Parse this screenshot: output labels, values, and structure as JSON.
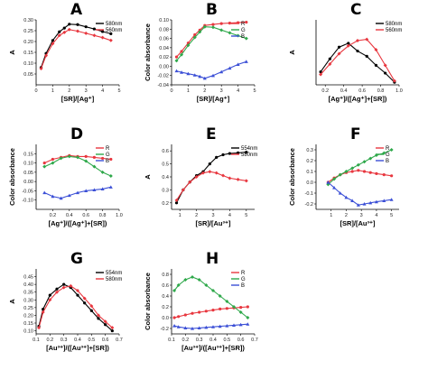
{
  "chart_data": [
    {
      "panel": "A",
      "type": "line",
      "xlabel": "[SR]/[Ag⁺]",
      "ylabel": "A",
      "xlim": [
        0,
        5
      ],
      "ylim": [
        0.0,
        0.3
      ],
      "xticks": [
        "0",
        "1",
        "2",
        "3",
        "4",
        "5"
      ],
      "yticks": [
        "0.05",
        "0.10",
        "0.15",
        "0.20",
        "0.25",
        "0.30"
      ],
      "legend": "top-right",
      "series": [
        {
          "name": "580nm",
          "color": "#000000",
          "x": [
            0.3,
            0.6,
            1.0,
            1.4,
            1.7,
            2.0,
            2.5,
            3.0,
            3.5,
            4.0,
            4.5
          ],
          "y": [
            0.08,
            0.145,
            0.205,
            0.245,
            0.262,
            0.28,
            0.278,
            0.268,
            0.258,
            0.246,
            0.236
          ]
        },
        {
          "name": "560nm",
          "color": "#e8373f",
          "x": [
            0.3,
            0.6,
            1.0,
            1.4,
            1.7,
            2.0,
            2.5,
            3.0,
            3.5,
            4.0,
            4.5
          ],
          "y": [
            0.075,
            0.135,
            0.19,
            0.228,
            0.242,
            0.255,
            0.248,
            0.238,
            0.228,
            0.218,
            0.205
          ]
        }
      ]
    },
    {
      "panel": "B",
      "type": "line",
      "xlabel": "[SR]/[Ag⁺]",
      "ylabel": "Color absorbance",
      "xlim": [
        0,
        5
      ],
      "ylim": [
        -0.04,
        0.1
      ],
      "xticks": [
        "0",
        "1",
        "2",
        "3",
        "4",
        "5"
      ],
      "yticks": [
        "-0.04",
        "-0.02",
        "0.00",
        "0.02",
        "0.04",
        "0.06",
        "0.08",
        "0.10"
      ],
      "legend": "top-right",
      "series": [
        {
          "name": "R",
          "color": "#e8373f",
          "x": [
            0.3,
            0.6,
            1.0,
            1.4,
            1.7,
            2.0,
            2.5,
            3.0,
            3.5,
            4.0,
            4.5
          ],
          "y": [
            0.02,
            0.032,
            0.05,
            0.068,
            0.078,
            0.088,
            0.09,
            0.092,
            0.093,
            0.094,
            0.095
          ]
        },
        {
          "name": "G",
          "color": "#2ea84a",
          "x": [
            0.3,
            0.6,
            1.0,
            1.4,
            1.7,
            2.0,
            2.5,
            3.0,
            3.5,
            4.0,
            4.5
          ],
          "y": [
            0.012,
            0.025,
            0.045,
            0.062,
            0.074,
            0.085,
            0.084,
            0.078,
            0.072,
            0.066,
            0.06
          ]
        },
        {
          "name": "B",
          "color": "#3b4fd6",
          "x": [
            0.3,
            0.6,
            1.0,
            1.4,
            1.7,
            2.0,
            2.5,
            3.0,
            3.5,
            4.0,
            4.5
          ],
          "y": [
            -0.01,
            -0.013,
            -0.016,
            -0.019,
            -0.022,
            -0.026,
            -0.02,
            -0.012,
            -0.004,
            0.004,
            0.01
          ]
        }
      ]
    },
    {
      "panel": "C",
      "type": "line",
      "xlabel": "[Ag⁺]/([Ag⁺]+[SR])",
      "ylabel": "A",
      "xlim": [
        0.1,
        1.0
      ],
      "ylim": [
        0.1,
        0.6
      ],
      "xticks": [
        "0.2",
        "0.4",
        "0.6",
        "0.8",
        "1.0"
      ],
      "yticks": [],
      "legend": "top-right",
      "series": [
        {
          "name": "580nm",
          "color": "#000000",
          "x": [
            0.15,
            0.25,
            0.35,
            0.45,
            0.55,
            0.65,
            0.75,
            0.85,
            0.95
          ],
          "y": [
            0.2,
            0.3,
            0.39,
            0.42,
            0.36,
            0.32,
            0.25,
            0.19,
            0.12
          ]
        },
        {
          "name": "560nm",
          "color": "#e8373f",
          "x": [
            0.15,
            0.25,
            0.35,
            0.45,
            0.55,
            0.65,
            0.75,
            0.85,
            0.95
          ],
          "y": [
            0.18,
            0.26,
            0.34,
            0.4,
            0.44,
            0.45,
            0.37,
            0.25,
            0.13
          ]
        }
      ]
    },
    {
      "panel": "D",
      "type": "line",
      "xlabel": "[Ag⁺]/([Ag⁺]+[SR])",
      "ylabel": "Color absorbance",
      "xlim": [
        0.0,
        1.0
      ],
      "ylim": [
        -0.15,
        0.2
      ],
      "xticks": [
        "0.2",
        "0.4",
        "0.6",
        "0.8",
        "1.0"
      ],
      "yticks": [
        "-0.10",
        "-0.05",
        "0.00",
        "0.05",
        "0.10",
        "0.15"
      ],
      "legend": "top-right",
      "series": [
        {
          "name": "R",
          "color": "#e8373f",
          "x": [
            0.1,
            0.2,
            0.3,
            0.4,
            0.5,
            0.6,
            0.7,
            0.8,
            0.9
          ],
          "y": [
            0.1,
            0.12,
            0.13,
            0.14,
            0.135,
            0.135,
            0.13,
            0.125,
            0.12
          ]
        },
        {
          "name": "G",
          "color": "#2ea84a",
          "x": [
            0.1,
            0.2,
            0.3,
            0.4,
            0.5,
            0.6,
            0.7,
            0.8,
            0.9
          ],
          "y": [
            0.08,
            0.1,
            0.125,
            0.135,
            0.13,
            0.11,
            0.08,
            0.05,
            0.03
          ]
        },
        {
          "name": "B",
          "color": "#3b4fd6",
          "x": [
            0.1,
            0.2,
            0.3,
            0.4,
            0.5,
            0.6,
            0.7,
            0.8,
            0.9
          ],
          "y": [
            -0.06,
            -0.08,
            -0.09,
            -0.075,
            -0.06,
            -0.05,
            -0.045,
            -0.04,
            -0.03
          ]
        }
      ]
    },
    {
      "panel": "E",
      "type": "line",
      "xlabel": "[SR]/[Au³⁺]",
      "ylabel": "A",
      "xlim": [
        0.5,
        5.5
      ],
      "ylim": [
        0.15,
        0.65
      ],
      "xticks": [
        "1",
        "2",
        "3",
        "4",
        "5"
      ],
      "yticks": [
        "0.2",
        "0.3",
        "0.4",
        "0.5",
        "0.6"
      ],
      "legend": "top-right",
      "series": [
        {
          "name": "554nm",
          "color": "#000000",
          "x": [
            0.8,
            1.2,
            1.6,
            2.0,
            2.4,
            2.8,
            3.2,
            3.6,
            4.0,
            4.5,
            5.0
          ],
          "y": [
            0.2,
            0.3,
            0.36,
            0.41,
            0.44,
            0.5,
            0.55,
            0.57,
            0.58,
            0.585,
            0.59
          ]
        },
        {
          "name": "580nm",
          "color": "#e8373f",
          "x": [
            0.8,
            1.2,
            1.6,
            2.0,
            2.4,
            2.8,
            3.2,
            3.6,
            4.0,
            4.5,
            5.0
          ],
          "y": [
            0.22,
            0.3,
            0.36,
            0.4,
            0.43,
            0.44,
            0.43,
            0.41,
            0.39,
            0.38,
            0.37
          ]
        }
      ]
    },
    {
      "panel": "F",
      "type": "line",
      "xlabel": "[SR]/[Au³⁺]",
      "ylabel": "Color absorbance",
      "xlim": [
        0,
        5.5
      ],
      "ylim": [
        -0.25,
        0.35
      ],
      "xticks": [
        "1",
        "2",
        "3",
        "4",
        "5"
      ],
      "yticks": [
        "-0.2",
        "-0.1",
        "0.0",
        "0.1",
        "0.2",
        "0.3"
      ],
      "legend": "top-right",
      "series": [
        {
          "name": "R",
          "color": "#e8373f",
          "x": [
            0.8,
            1.2,
            1.6,
            2.0,
            2.4,
            2.8,
            3.2,
            3.6,
            4.0,
            4.5,
            5.0
          ],
          "y": [
            0.0,
            0.04,
            0.07,
            0.09,
            0.1,
            0.11,
            0.1,
            0.09,
            0.08,
            0.07,
            0.06
          ]
        },
        {
          "name": "G",
          "color": "#2ea84a",
          "x": [
            0.8,
            1.2,
            1.6,
            2.0,
            2.4,
            2.8,
            3.2,
            3.6,
            4.0,
            4.5,
            5.0
          ],
          "y": [
            -0.02,
            0.03,
            0.07,
            0.1,
            0.13,
            0.16,
            0.19,
            0.22,
            0.25,
            0.27,
            0.3
          ]
        },
        {
          "name": "B",
          "color": "#3b4fd6",
          "x": [
            0.8,
            1.2,
            1.6,
            2.0,
            2.4,
            2.8,
            3.2,
            3.6,
            4.0,
            4.5,
            5.0
          ],
          "y": [
            0.0,
            -0.05,
            -0.1,
            -0.14,
            -0.17,
            -0.21,
            -0.2,
            -0.19,
            -0.18,
            -0.17,
            -0.16
          ]
        }
      ]
    },
    {
      "panel": "G",
      "type": "line",
      "xlabel": "[Au³⁺]/([Au³⁺]+[SR])",
      "ylabel": "A",
      "xlim": [
        0.1,
        0.7
      ],
      "ylim": [
        0.08,
        0.5
      ],
      "xticks": [
        "0.1",
        "0.2",
        "0.3",
        "0.4",
        "0.5",
        "0.6",
        "0.7"
      ],
      "yticks": [
        "0.10",
        "0.15",
        "0.20",
        "0.25",
        "0.30",
        "0.35",
        "0.40",
        "0.45"
      ],
      "legend": "top-right",
      "series": [
        {
          "name": "554nm",
          "color": "#000000",
          "x": [
            0.12,
            0.15,
            0.2,
            0.25,
            0.3,
            0.35,
            0.4,
            0.45,
            0.5,
            0.55,
            0.6,
            0.65
          ],
          "y": [
            0.13,
            0.24,
            0.33,
            0.37,
            0.4,
            0.38,
            0.33,
            0.28,
            0.23,
            0.18,
            0.14,
            0.1
          ]
        },
        {
          "name": "580nm",
          "color": "#e8373f",
          "x": [
            0.12,
            0.15,
            0.2,
            0.25,
            0.3,
            0.35,
            0.4,
            0.45,
            0.5,
            0.55,
            0.6,
            0.65
          ],
          "y": [
            0.12,
            0.22,
            0.3,
            0.35,
            0.38,
            0.39,
            0.36,
            0.31,
            0.26,
            0.2,
            0.16,
            0.12
          ]
        }
      ]
    },
    {
      "panel": "H",
      "type": "line",
      "xlabel": "[Au³⁺]/([Au³⁺]+[SR])",
      "ylabel": "Color absorbance",
      "xlim": [
        0.1,
        0.7
      ],
      "ylim": [
        -0.3,
        0.9
      ],
      "xticks": [
        "0.1",
        "0.2",
        "0.3",
        "0.4",
        "0.5",
        "0.6",
        "0.7"
      ],
      "yticks": [
        "-0.2",
        "0.0",
        "0.2",
        "0.4",
        "0.6",
        "0.8"
      ],
      "legend": "top-right",
      "series": [
        {
          "name": "R",
          "color": "#e8373f",
          "x": [
            0.12,
            0.15,
            0.2,
            0.25,
            0.3,
            0.35,
            0.4,
            0.45,
            0.5,
            0.55,
            0.6,
            0.65
          ],
          "y": [
            0.0,
            0.02,
            0.05,
            0.08,
            0.1,
            0.12,
            0.14,
            0.16,
            0.17,
            0.18,
            0.19,
            0.2
          ]
        },
        {
          "name": "G",
          "color": "#2ea84a",
          "x": [
            0.12,
            0.15,
            0.2,
            0.25,
            0.3,
            0.35,
            0.4,
            0.45,
            0.5,
            0.55,
            0.6,
            0.65
          ],
          "y": [
            0.5,
            0.6,
            0.7,
            0.75,
            0.7,
            0.6,
            0.5,
            0.4,
            0.3,
            0.2,
            0.1,
            0.0
          ]
        },
        {
          "name": "B",
          "color": "#3b4fd6",
          "x": [
            0.12,
            0.15,
            0.2,
            0.25,
            0.3,
            0.35,
            0.4,
            0.45,
            0.5,
            0.55,
            0.6,
            0.65
          ],
          "y": [
            -0.15,
            -0.17,
            -0.19,
            -0.2,
            -0.19,
            -0.18,
            -0.17,
            -0.16,
            -0.15,
            -0.14,
            -0.13,
            -0.12
          ]
        }
      ]
    }
  ]
}
